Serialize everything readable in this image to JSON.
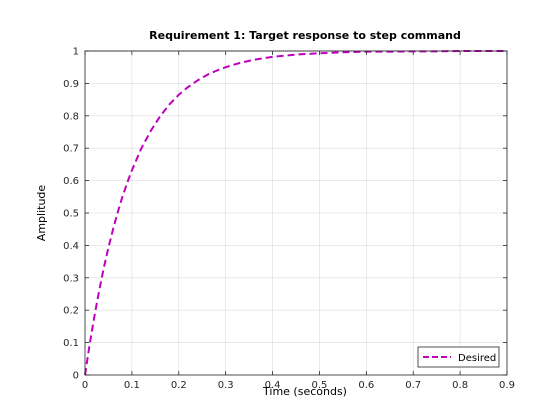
{
  "chart_data": {
    "type": "line",
    "title": "Requirement 1: Target response to step command",
    "xlabel": "Time (seconds)",
    "ylabel": "Amplitude",
    "xlim": [
      0,
      0.9
    ],
    "ylim": [
      0,
      1
    ],
    "xticks": [
      0,
      0.1,
      0.2,
      0.3,
      0.4,
      0.5,
      0.6,
      0.7,
      0.8,
      0.9
    ],
    "xtick_labels": [
      "0",
      "0.1",
      "0.2",
      "0.3",
      "0.4",
      "0.5",
      "0.6",
      "0.7",
      "0.8",
      "0.9"
    ],
    "yticks": [
      0,
      0.1,
      0.2,
      0.3,
      0.4,
      0.5,
      0.6,
      0.7,
      0.8,
      0.9,
      1
    ],
    "ytick_labels": [
      "0",
      "0.1",
      "0.2",
      "0.3",
      "0.4",
      "0.5",
      "0.6",
      "0.7",
      "0.8",
      "0.9",
      "1"
    ],
    "grid": true,
    "legend_position": "bottom-right",
    "reference_line": {
      "y": 1,
      "color": "#000000",
      "style": "dotted"
    },
    "series": [
      {
        "name": "Desired",
        "color": "#bf00bf",
        "style": "dashed",
        "x": [
          0,
          0.01,
          0.02,
          0.03,
          0.04,
          0.05,
          0.06,
          0.07,
          0.08,
          0.09,
          0.1,
          0.12,
          0.14,
          0.16,
          0.18,
          0.2,
          0.22,
          0.24,
          0.26,
          0.28,
          0.3,
          0.33,
          0.36,
          0.4,
          0.45,
          0.5,
          0.55,
          0.6,
          0.65,
          0.7,
          0.75,
          0.8,
          0.85,
          0.9
        ],
        "y": [
          0,
          0.095,
          0.181,
          0.259,
          0.33,
          0.393,
          0.451,
          0.503,
          0.551,
          0.593,
          0.632,
          0.699,
          0.753,
          0.798,
          0.835,
          0.865,
          0.889,
          0.909,
          0.926,
          0.939,
          0.95,
          0.963,
          0.973,
          0.982,
          0.989,
          0.993,
          0.996,
          0.998,
          0.998,
          0.999,
          0.999,
          1.0,
          1.0,
          1.0
        ]
      }
    ]
  }
}
